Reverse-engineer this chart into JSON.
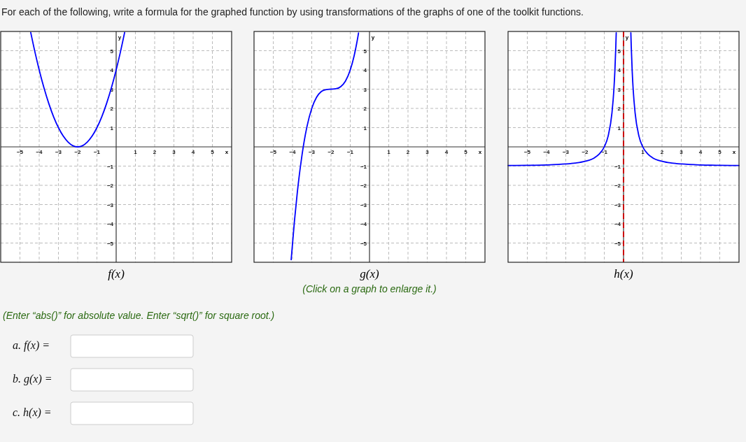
{
  "chart_data": [
    {
      "type": "line",
      "title": "f(x)",
      "xlabel": "x",
      "ylabel": "y",
      "xlim": [
        -6,
        6
      ],
      "ylim": [
        -6,
        6
      ],
      "xticks": [
        -5,
        -4,
        -3,
        -2,
        -1,
        1,
        2,
        3,
        4,
        5
      ],
      "yticks": [
        -5,
        -4,
        -3,
        -2,
        -1,
        1,
        2,
        3,
        4,
        5
      ],
      "grid": true,
      "series": [
        {
          "color": "#0000ff",
          "x": [
            -4.44,
            -4.2,
            -4,
            -3.75,
            -3.5,
            -3.25,
            -3,
            -2.75,
            -2.5,
            -2.25,
            -2,
            -1.75,
            -1.5,
            -1.25,
            -1,
            -0.75,
            -0.5,
            -0.25,
            0,
            0.2,
            0.44
          ],
          "values": [
            5.95,
            4.84,
            4,
            3.06,
            2.25,
            1.56,
            1,
            0.56,
            0.25,
            0.06,
            0,
            0.06,
            0.25,
            0.56,
            1,
            1.56,
            2.25,
            3.06,
            4,
            4.84,
            5.95
          ]
        }
      ]
    },
    {
      "type": "line",
      "title": "g(x)",
      "xlabel": "x",
      "ylabel": "y",
      "xlim": [
        -6,
        6
      ],
      "ylim": [
        -6,
        6
      ],
      "xticks": [
        -5,
        -4,
        -3,
        -2,
        -1,
        1,
        2,
        3,
        4,
        5
      ],
      "yticks": [
        -5,
        -4,
        -3,
        -2,
        -1,
        1,
        2,
        3,
        4,
        5
      ],
      "grid": true,
      "annotations": [
        "(Click on a graph to enlarge it.)"
      ],
      "series": [
        {
          "color": "#0000ff",
          "x": [
            -4.07,
            -3.9,
            -3.75,
            -3.6,
            -3.5,
            -3.4,
            -3.25,
            -3,
            -2.75,
            -2.5,
            -2.25,
            -2,
            -1.75,
            -1.5,
            -1.25,
            -1,
            -0.8,
            -0.6,
            -0.57
          ],
          "values": [
            -5.87,
            -3.86,
            -2.36,
            -1.1,
            -0.38,
            0.26,
            1.05,
            2,
            2.58,
            2.88,
            2.98,
            3,
            3.02,
            3.13,
            3.42,
            4,
            4.73,
            5.74,
            5.92
          ]
        }
      ]
    },
    {
      "type": "line",
      "title": "h(x)",
      "xlabel": "x",
      "ylabel": "y",
      "xlim": [
        -6,
        6
      ],
      "ylim": [
        -6,
        6
      ],
      "xticks": [
        -5,
        -4,
        -3,
        -2,
        -1,
        1,
        2,
        3,
        4,
        5
      ],
      "yticks": [
        -5,
        -4,
        -3,
        -2,
        -1,
        1,
        2,
        3,
        4,
        5
      ],
      "grid": true,
      "ref_lines": [
        {
          "axis": "x",
          "value": 0,
          "color": "#cc0000",
          "line_style": "dashed"
        }
      ],
      "series": [
        {
          "color": "#0000ff",
          "x": [
            -6,
            -5,
            -4,
            -3,
            -2.5,
            -2,
            -1.5,
            -1.25,
            -1,
            -0.8,
            -0.6,
            -0.5,
            -0.45,
            -0.4,
            -0.38,
            0,
            0.38,
            0.4,
            0.45,
            0.5,
            0.6,
            0.8,
            1,
            1.25,
            1.5,
            2,
            2.5,
            3,
            4,
            5,
            6
          ],
          "values": [
            -0.97,
            -0.96,
            -0.94,
            -0.89,
            -0.84,
            -0.75,
            -0.56,
            -0.36,
            0,
            0.56,
            1.78,
            3,
            3.94,
            5.25,
            5.93,
            null,
            5.93,
            5.25,
            3.94,
            3,
            1.78,
            0.56,
            0,
            -0.36,
            -0.56,
            -0.75,
            -0.84,
            -0.89,
            -0.94,
            -0.96,
            -0.97
          ]
        }
      ]
    },
    {
      "type": "other",
      "title": "For each of the following, write a formula for the graphed function by using transformations of the graphs of one of the toolkit functions.",
      "annotations": [
        "(Enter “abs()” for absolute value. Enter “sqrt()” for square root.)",
        "a. f(x) =",
        "b. g(x) =",
        "c. h(x) ="
      ]
    }
  ]
}
